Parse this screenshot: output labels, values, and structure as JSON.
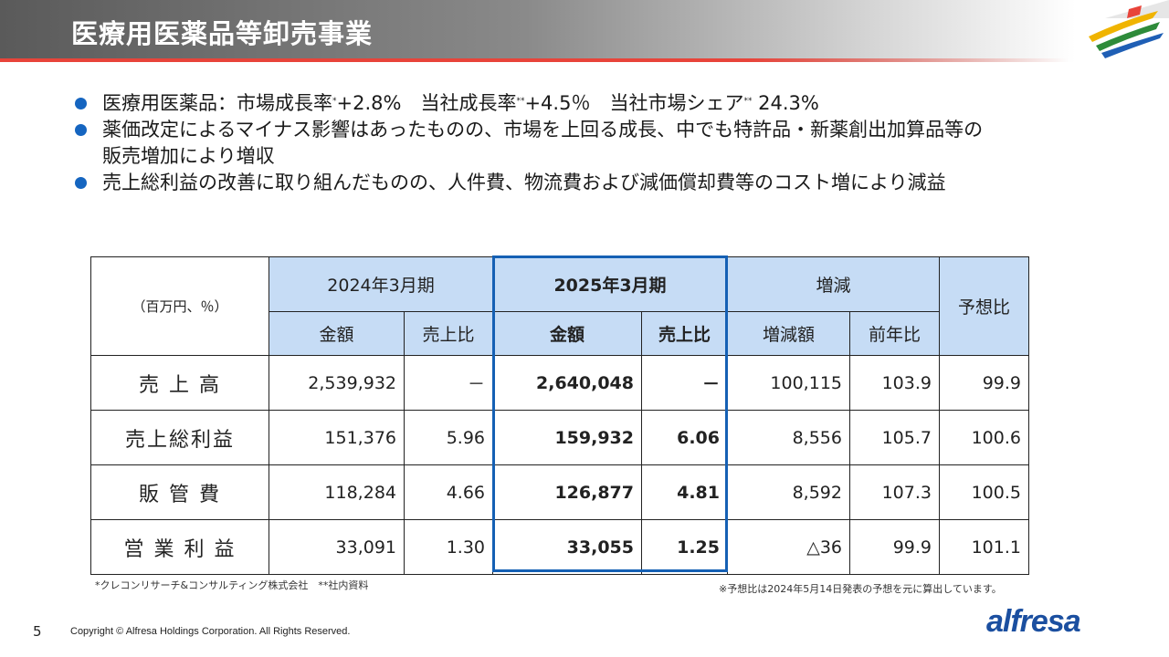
{
  "header": {
    "title": "医療用医薬品等卸売事業"
  },
  "bullets": [
    {
      "parts": [
        "医療用医薬品：市場成長率",
        "*",
        "+2.8%　当社成長率",
        "**",
        "+4.5％　当社市場シェア",
        "**",
        " 24.3%"
      ]
    },
    {
      "text": "薬価改定によるマイナス影響はあったものの、市場を上回る成長、中でも特許品・新薬創出加算品等の"
    },
    {
      "text": "販売増加により増収"
    },
    {
      "text": "売上総利益の改善に取り組んだものの、人件費、物流費および減価償却費等のコスト増により減益"
    }
  ],
  "table": {
    "unit_label": "（百万円、％）",
    "periods": {
      "prev": "2024年3月期",
      "curr": "2025年3月期",
      "change": "増減",
      "forecast": "予想比"
    },
    "subheaders": {
      "prev_amount": "金額",
      "prev_ratio": "売上比",
      "curr_amount": "金額",
      "curr_ratio": "売上比",
      "change_amount": "増減額",
      "change_yoy": "前年比"
    },
    "rows": [
      {
        "label": "売 上 高",
        "prev_amount": "2,539,932",
        "prev_ratio": "－",
        "curr_amount": "2,640,048",
        "curr_ratio": "－",
        "change_amount": "100,115",
        "change_yoy": "103.9",
        "forecast": "99.9"
      },
      {
        "label": "売上総利益",
        "prev_amount": "151,376",
        "prev_ratio": "5.96",
        "curr_amount": "159,932",
        "curr_ratio": "6.06",
        "change_amount": "8,556",
        "change_yoy": "105.7",
        "forecast": "100.6"
      },
      {
        "label": "販 管 費",
        "prev_amount": "118,284",
        "prev_ratio": "4.66",
        "curr_amount": "126,877",
        "curr_ratio": "4.81",
        "change_amount": "8,592",
        "change_yoy": "107.3",
        "forecast": "100.5"
      },
      {
        "label": "営 業 利 益",
        "prev_amount": "33,091",
        "prev_ratio": "1.30",
        "curr_amount": "33,055",
        "curr_ratio": "1.25",
        "change_amount": "△36",
        "change_yoy": "99.9",
        "forecast": "101.1"
      }
    ]
  },
  "footnotes": {
    "left": "*クレコンリサーチ&コンサルティング株式会社　**社内資料",
    "right": "※予想比は2024年5月14日発表の予想を元に算出しています。"
  },
  "footer": {
    "page_number": "5",
    "copyright": "Copyright © Alfresa Holdings Corporation. All Rights Reserved.",
    "brand": "alfresa"
  },
  "colors": {
    "accent_blue": "#1560b4",
    "header_cell": "#c6dcf5",
    "bullet": "#1565c0",
    "header_red_line": "#e8443a",
    "brand": "#1b4fa0"
  }
}
